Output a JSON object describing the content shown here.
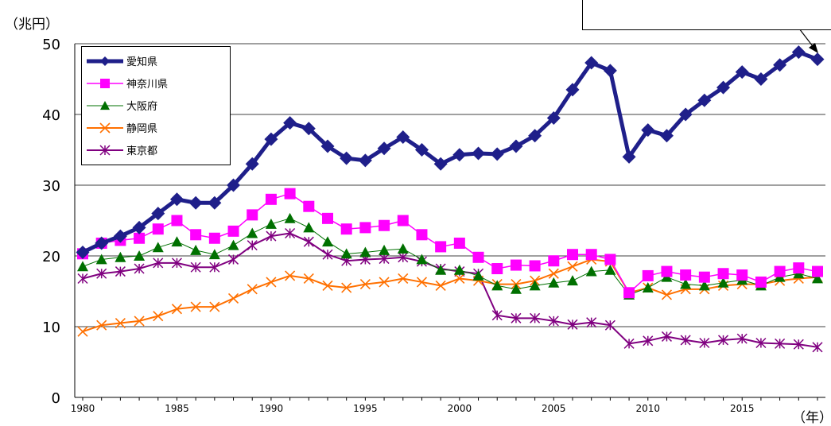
{
  "chart_data": {
    "type": "line",
    "ylabel": "（兆円）",
    "xlabel": "（年）",
    "ylim": [
      0,
      50
    ],
    "y_ticks": [
      "0",
      "10",
      "20",
      "30",
      "40",
      "50"
    ],
    "x": [
      1980,
      1981,
      1982,
      1983,
      1984,
      1985,
      1986,
      1987,
      1988,
      1989,
      1990,
      1991,
      1992,
      1993,
      1994,
      1995,
      1996,
      1997,
      1998,
      1999,
      2000,
      2001,
      2002,
      2003,
      2004,
      2005,
      2006,
      2007,
      2008,
      2009,
      2010,
      2011,
      2012,
      2013,
      2014,
      2015,
      2016,
      2017,
      2018,
      2019
    ],
    "x_ticks": [
      "1980",
      "1985",
      "1990",
      "1995",
      "2000",
      "2005",
      "2010",
      "2015"
    ],
    "grid": true,
    "legend_position": "top-left",
    "series": [
      {
        "name": "愛知県",
        "color": "#1f1f8a",
        "marker": "diamond",
        "values": [
          20.5,
          21.8,
          22.8,
          24.0,
          26.0,
          28.0,
          27.5,
          27.5,
          30.0,
          33.0,
          36.5,
          38.8,
          38.0,
          35.5,
          33.8,
          33.5,
          35.2,
          36.8,
          35.0,
          33.0,
          34.3,
          34.5,
          34.4,
          35.5,
          37.0,
          39.5,
          43.5,
          47.3,
          46.2,
          34.0,
          37.8,
          37.0,
          40.0,
          42.0,
          43.8,
          46.0,
          45.0,
          47.0,
          48.8,
          47.8
        ]
      },
      {
        "name": "神奈川県",
        "color": "#ff00ff",
        "marker": "square",
        "values": [
          20.3,
          21.8,
          22.2,
          22.5,
          23.8,
          25.0,
          23.0,
          22.5,
          23.5,
          25.8,
          28.0,
          28.8,
          27.0,
          25.3,
          23.8,
          24.0,
          24.3,
          25.0,
          23.0,
          21.3,
          21.8,
          19.8,
          18.2,
          18.7,
          18.6,
          19.3,
          20.2,
          20.2,
          19.5,
          14.8,
          17.2,
          17.8,
          17.3,
          17.0,
          17.5,
          17.3,
          16.3,
          17.8,
          18.3,
          17.8
        ]
      },
      {
        "name": "大阪府",
        "color": "#007000",
        "marker": "triangle",
        "values": [
          18.5,
          19.5,
          19.8,
          20.0,
          21.2,
          22.0,
          20.8,
          20.2,
          21.5,
          23.2,
          24.5,
          25.3,
          24.0,
          22.0,
          20.3,
          20.5,
          20.8,
          21.0,
          19.5,
          18.0,
          18.0,
          17.2,
          15.8,
          15.3,
          15.8,
          16.2,
          16.5,
          17.8,
          18.0,
          14.5,
          15.5,
          17.0,
          16.0,
          15.8,
          16.2,
          16.6,
          15.8,
          17.0,
          17.5,
          16.8
        ]
      },
      {
        "name": "静岡県",
        "color": "#ff7000",
        "marker": "x",
        "values": [
          9.3,
          10.2,
          10.5,
          10.8,
          11.5,
          12.5,
          12.8,
          12.8,
          14.0,
          15.3,
          16.3,
          17.2,
          16.8,
          15.8,
          15.5,
          16.0,
          16.3,
          16.8,
          16.3,
          15.8,
          16.8,
          16.5,
          16.0,
          16.0,
          16.5,
          17.5,
          18.5,
          19.5,
          19.2,
          14.8,
          15.5,
          14.5,
          15.3,
          15.3,
          15.8,
          16.0,
          16.0,
          16.5,
          16.8,
          17.0
        ]
      },
      {
        "name": "東京都",
        "color": "#800080",
        "marker": "star",
        "values": [
          16.8,
          17.5,
          17.8,
          18.2,
          19.0,
          19.0,
          18.4,
          18.4,
          19.5,
          21.5,
          22.8,
          23.2,
          22.0,
          20.2,
          19.3,
          19.5,
          19.6,
          19.8,
          19.2,
          18.2,
          17.8,
          17.5,
          11.6,
          11.2,
          11.2,
          10.8,
          10.3,
          10.6,
          10.2,
          7.6,
          8.0,
          8.6,
          8.1,
          7.7,
          8.1,
          8.3,
          7.7,
          7.6,
          7.5,
          7.1
        ]
      }
    ]
  }
}
